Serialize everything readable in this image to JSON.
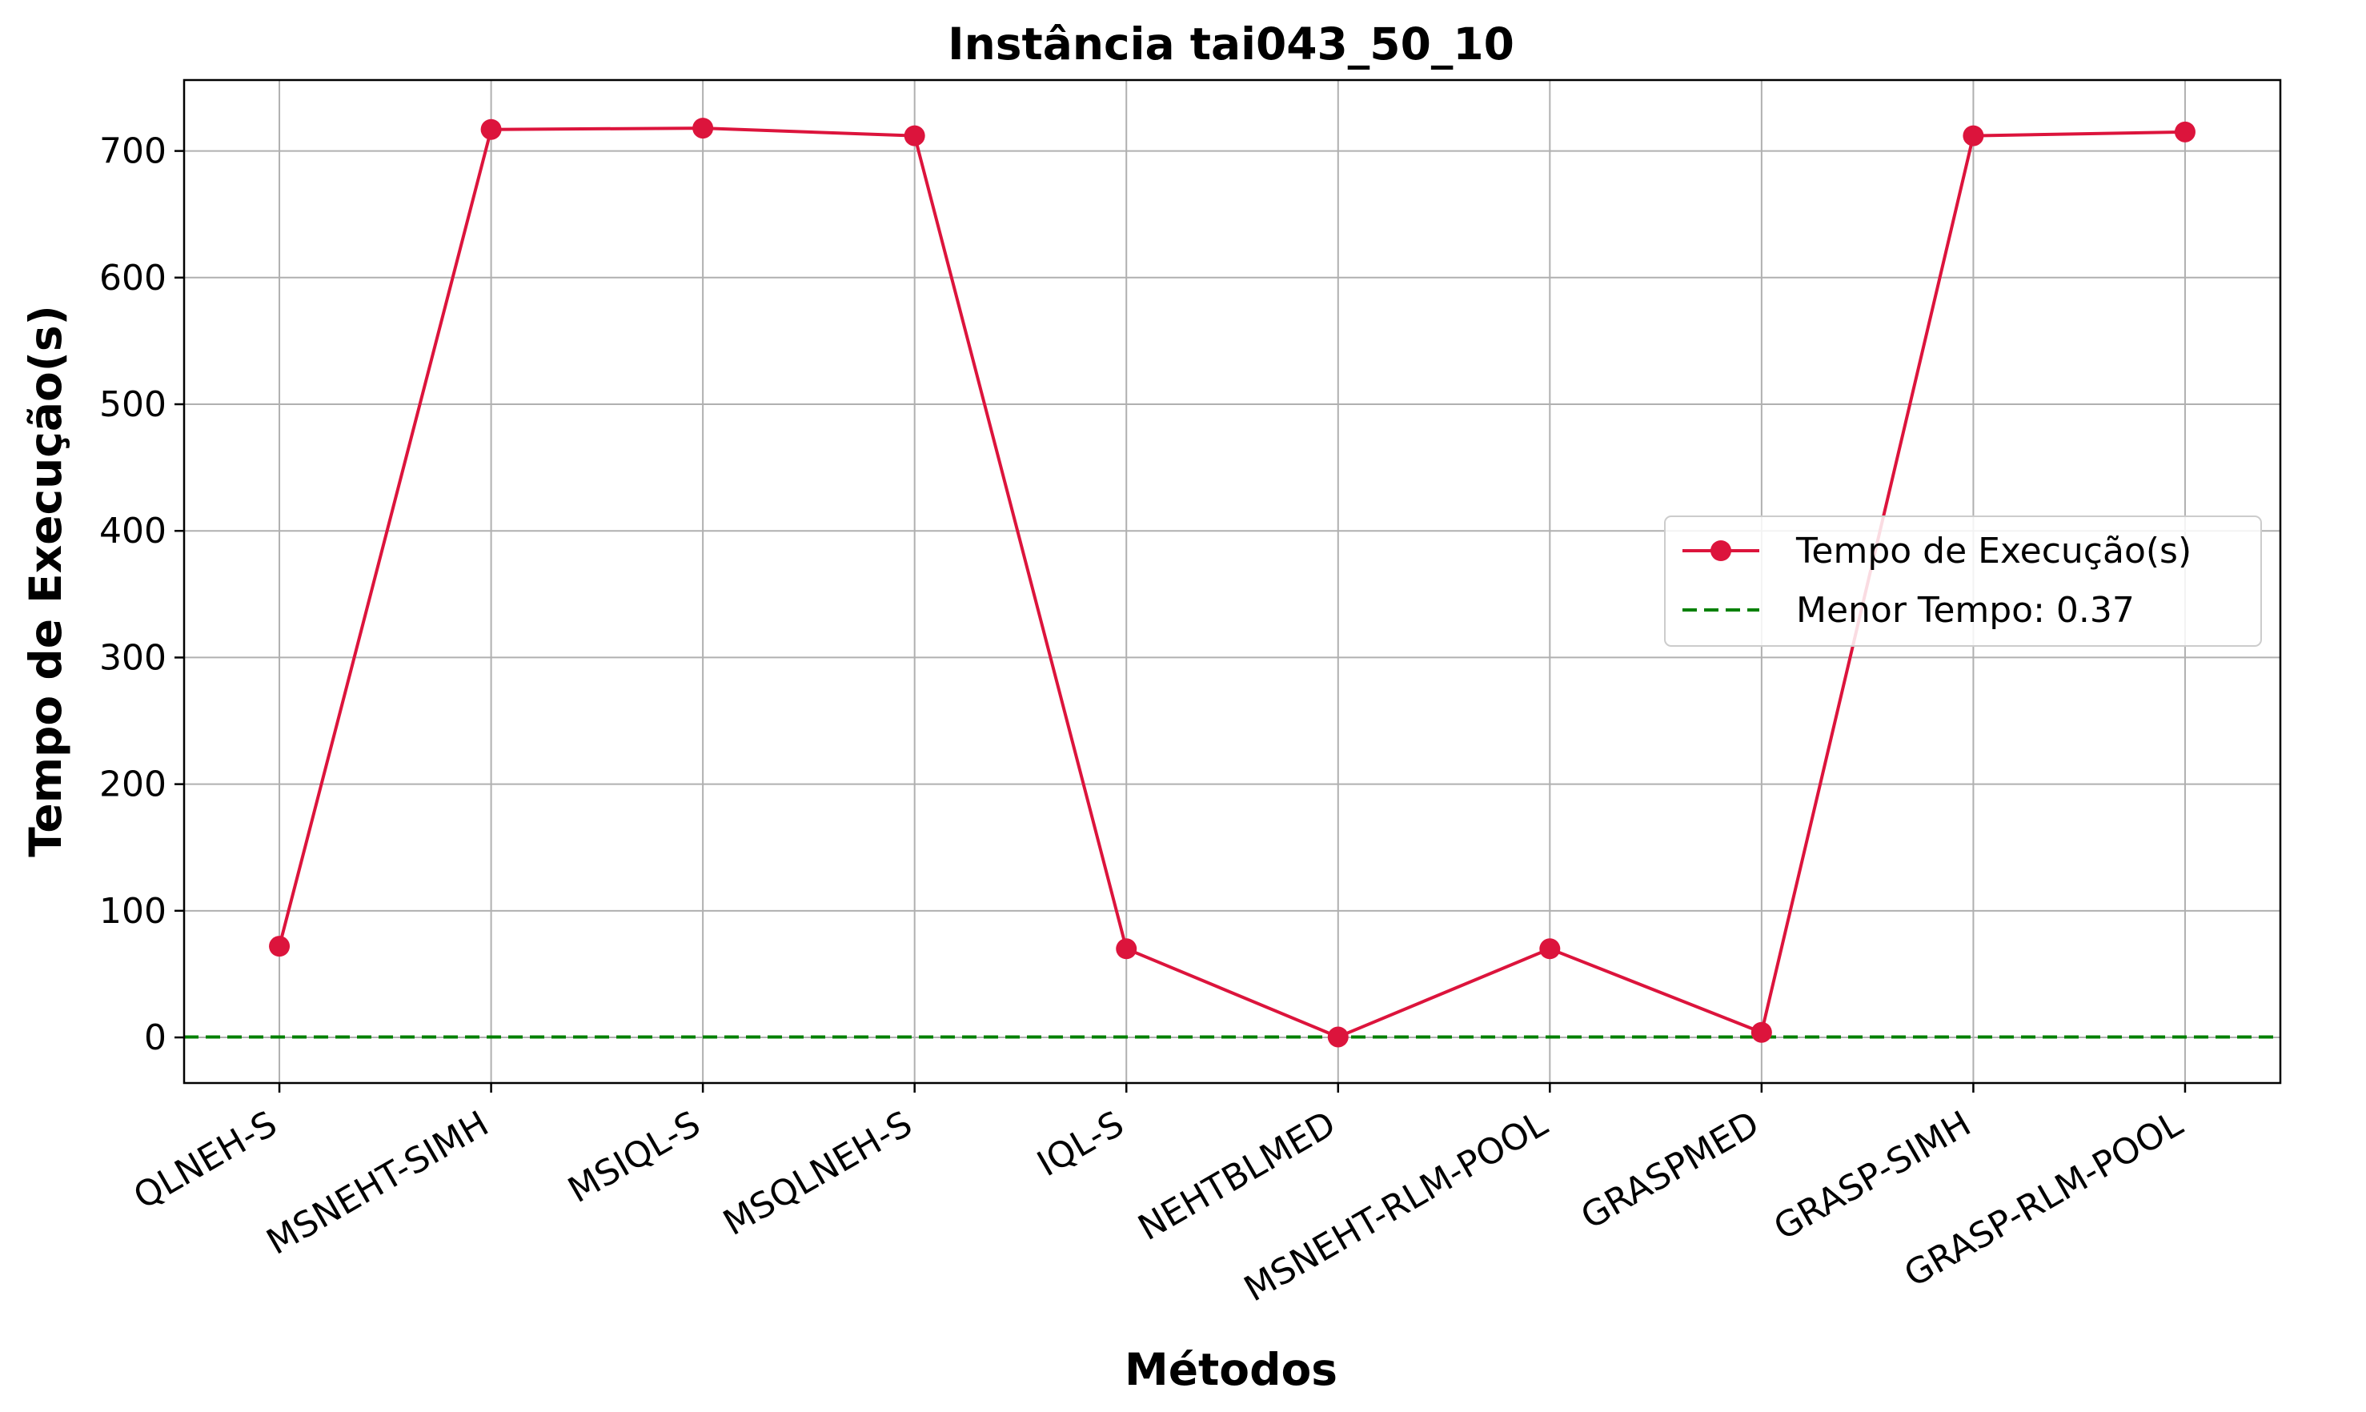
{
  "chart_data": {
    "type": "line",
    "title": "Instância tai043_50_10",
    "xlabel": "Métodos",
    "ylabel": "Tempo de Execução(s)",
    "categories": [
      "QLNEH-S",
      "MSNEHT-SIMH",
      "MSIQL-S",
      "MSQLNEH-S",
      "IQL-S",
      "NEHTBLMED",
      "MSNEHT-RLM-POOL",
      "GRASPMED",
      "GRASP-SIMH",
      "GRASP-RLM-POOL"
    ],
    "series": [
      {
        "name": "Tempo de Execução(s)",
        "values": [
          72,
          717,
          718,
          712,
          70,
          0.37,
          70,
          4,
          712,
          715
        ],
        "color": "#dc143c",
        "marker": "circle"
      }
    ],
    "reference_line": {
      "label": "Menor Tempo: 0.37",
      "value": 0.37,
      "color": "#008000",
      "style": "dashed"
    },
    "ylim": [
      -36,
      756
    ],
    "yticks": [
      0,
      100,
      200,
      300,
      400,
      500,
      600,
      700
    ],
    "grid": true,
    "legend_position": "center-right",
    "x_tick_rotation": 30
  }
}
